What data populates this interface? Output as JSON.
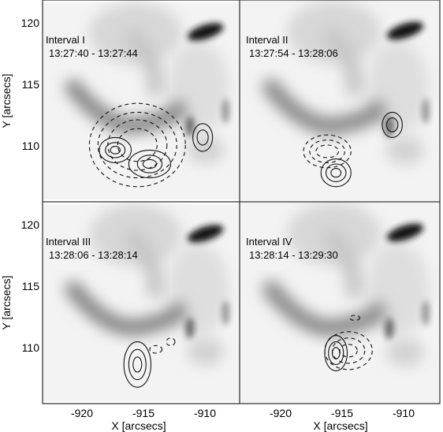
{
  "figure": {
    "xlabel": "X [arcsecs]",
    "ylabel": "Y [arcsecs]",
    "x_ticks": [
      "-920",
      "-915",
      "-910"
    ],
    "y_ticks": [
      "120",
      "115",
      "110"
    ]
  },
  "panels": [
    {
      "title": "Interval I",
      "time": "13:27:40 - 13:27:44"
    },
    {
      "title": "Interval II",
      "time": "13:27:54 - 13:28:06"
    },
    {
      "title": "Interval III",
      "time": "13:28:06 - 13:28:14"
    },
    {
      "title": "Interval IV",
      "time": "13:28:14 - 13:29:30"
    }
  ],
  "chart_data": {
    "type": "heatmap",
    "xlim": [
      -923.3,
      -907.3
    ],
    "ylim": [
      106.3,
      122.3
    ],
    "grid": false,
    "panels": [
      {
        "solid_contours": [
          {
            "center": [
              -917.4,
              110.4
            ],
            "radii": [
              [
                1.3,
                1.0
              ],
              [
                0.8,
                0.6
              ],
              [
                0.4,
                0.3
              ]
            ]
          },
          {
            "center": [
              -914.6,
              109.3
            ],
            "radii": [
              [
                1.7,
                1.1
              ],
              [
                1.0,
                0.7
              ],
              [
                0.55,
                0.35
              ]
            ]
          },
          {
            "center": [
              -910.3,
              111.4
            ],
            "radii": [
              [
                0.8,
                1.1
              ],
              [
                0.45,
                0.6
              ]
            ]
          }
        ],
        "dashed_contours": [
          {
            "center": [
              -915.6,
              110.8
            ],
            "radii": [
              [
                3.9,
                3.3
              ],
              [
                3.2,
                2.6
              ],
              [
                2.4,
                2.0
              ],
              [
                1.6,
                1.3
              ]
            ]
          }
        ]
      },
      {
        "solid_contours": [
          {
            "center": [
              -915.6,
              108.6
            ],
            "radii": [
              [
                1.2,
                1.1
              ],
              [
                0.8,
                0.7
              ],
              [
                0.4,
                0.35
              ]
            ]
          },
          {
            "center": [
              -911.1,
              112.4
            ],
            "radii": [
              [
                0.8,
                1.0
              ],
              [
                0.45,
                0.55
              ]
            ]
          }
        ],
        "dashed_contours": [
          {
            "center": [
              -916.3,
              110.3
            ],
            "radii": [
              [
                1.9,
                1.3
              ],
              [
                1.4,
                0.9
              ],
              [
                0.9,
                0.5
              ]
            ]
          }
        ]
      },
      {
        "solid_contours": [
          {
            "center": [
              -915.6,
              109.4
            ],
            "radii": [
              [
                1.1,
                1.8
              ],
              [
                0.7,
                1.2
              ],
              [
                0.35,
                0.6
              ]
            ]
          }
        ],
        "dashed_contours": [
          {
            "center": [
              -914.1,
              110.6
            ],
            "radii": [
              [
                0.5,
                0.3
              ]
            ]
          },
          {
            "center": [
              -912.9,
              111.2
            ],
            "radii": [
              [
                0.35,
                0.3
              ]
            ]
          }
        ]
      },
      {
        "solid_contours": [
          {
            "center": [
              -915.6,
              110.3
            ],
            "radii": [
              [
                0.9,
                1.4
              ],
              [
                0.6,
                0.9
              ],
              [
                0.3,
                0.45
              ]
            ]
          }
        ],
        "dashed_contours": [
          {
            "center": [
              -914.6,
              110.5
            ],
            "radii": [
              [
                1.9,
                1.5
              ],
              [
                1.3,
                1.0
              ],
              [
                0.7,
                0.5
              ]
            ]
          },
          {
            "center": [
              -914.1,
              113.1
            ],
            "radii": [
              [
                0.4,
                0.2
              ]
            ]
          }
        ]
      }
    ]
  }
}
